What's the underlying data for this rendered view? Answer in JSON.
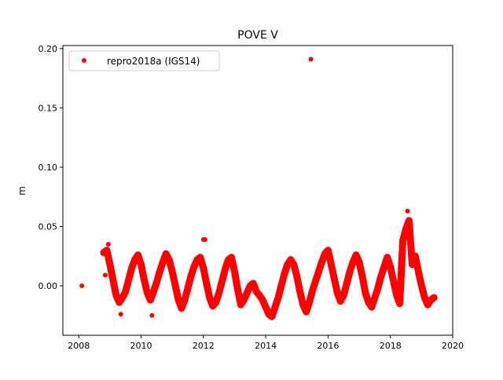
{
  "chart_data": {
    "type": "scatter",
    "title": "POVE V",
    "xlabel": "",
    "ylabel": "m",
    "xlim": [
      2007.49,
      2020.0
    ],
    "ylim": [
      -0.0417,
      0.2026
    ],
    "xticks": [
      2008,
      2010,
      2012,
      2014,
      2016,
      2018,
      2020
    ],
    "xtick_labels": [
      "2008",
      "2010",
      "2012",
      "2014",
      "2016",
      "2018",
      "2020"
    ],
    "yticks": [
      0.0,
      0.05,
      0.1,
      0.15,
      0.2
    ],
    "ytick_labels": [
      "0.00",
      "0.05",
      "0.10",
      "0.15",
      "0.20"
    ],
    "grid": false,
    "legend_position": "top-left",
    "series": [
      {
        "name": "repro2018a (IGS14)",
        "color": "#ff0000",
        "x_start": 2008.8,
        "x_step": 0.1,
        "values": [
          0.028,
          0.03,
          0.018,
          0.005,
          -0.008,
          -0.014,
          -0.01,
          -0.005,
          0.005,
          0.015,
          0.022,
          0.026,
          0.018,
          0.005,
          -0.006,
          -0.012,
          -0.005,
          0.003,
          0.012,
          0.02,
          0.027,
          0.022,
          0.012,
          0.0,
          -0.012,
          -0.019,
          -0.012,
          -0.002,
          0.008,
          0.016,
          0.022,
          0.024,
          0.015,
          0.002,
          -0.01,
          -0.017,
          -0.014,
          -0.006,
          0.004,
          0.014,
          0.022,
          0.024,
          0.012,
          -0.003,
          -0.016,
          -0.012,
          -0.006,
          0.0,
          0.002,
          -0.005,
          -0.008,
          -0.012,
          -0.018,
          -0.024,
          -0.026,
          -0.018,
          -0.01,
          0.0,
          0.01,
          0.018,
          0.022,
          0.018,
          0.008,
          -0.005,
          -0.016,
          -0.022,
          -0.014,
          -0.004,
          0.004,
          0.012,
          0.02,
          0.027,
          0.03,
          0.018,
          0.006,
          -0.006,
          -0.013,
          -0.008,
          0.002,
          0.012,
          0.02,
          0.026,
          0.02,
          0.008,
          -0.006,
          -0.014,
          -0.018,
          -0.01,
          -0.002,
          0.008,
          0.016,
          0.024,
          0.016,
          0.004,
          -0.008,
          -0.015,
          0.038,
          0.048,
          0.055,
          0.018,
          0.025,
          0.012,
          0.0,
          -0.01,
          -0.016,
          -0.012,
          -0.01
        ],
        "outliers": [
          [
            2008.1,
            0.0
          ],
          [
            2015.45,
            0.191
          ],
          [
            2012.0,
            0.039
          ],
          [
            2012.05,
            0.039
          ],
          [
            2008.85,
            0.009
          ],
          [
            2010.35,
            -0.025
          ],
          [
            2009.35,
            -0.024
          ],
          [
            2018.55,
            0.063
          ],
          [
            2008.95,
            0.035
          ]
        ]
      }
    ]
  }
}
